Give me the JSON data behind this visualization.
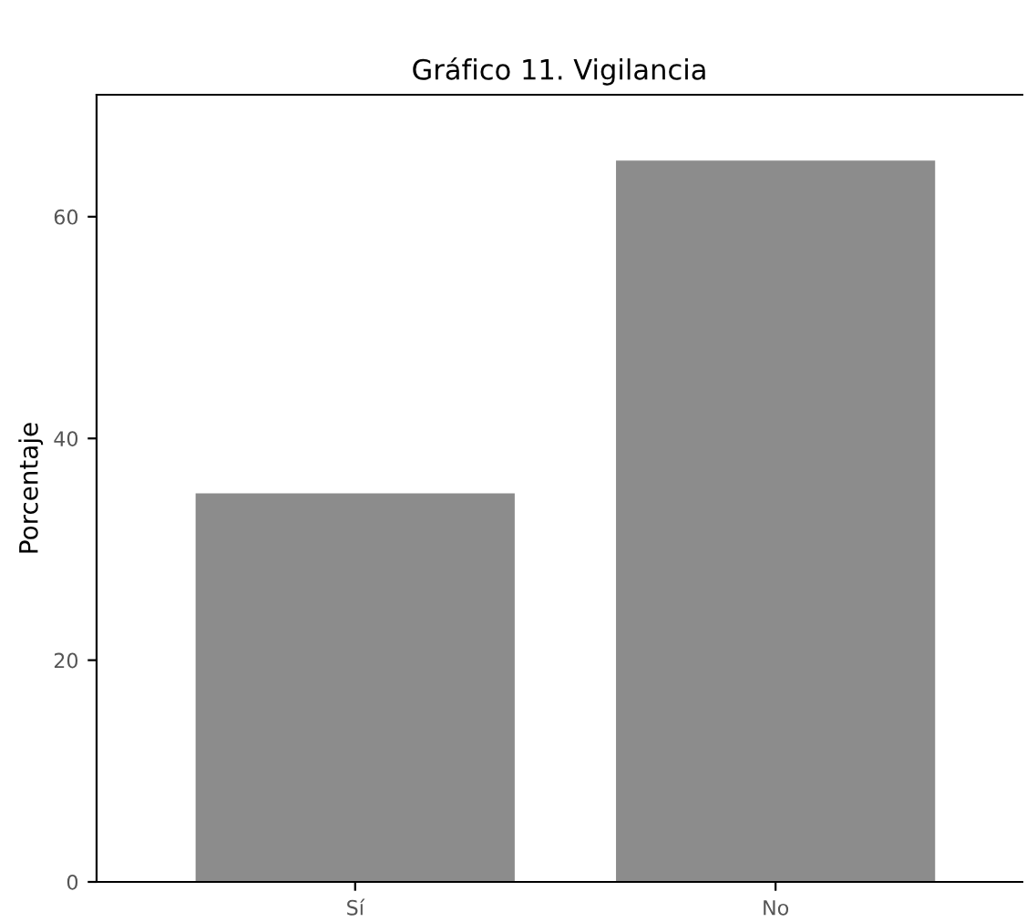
{
  "chart_data": {
    "type": "bar",
    "title": "Gráfico 11. Vigilancia",
    "ylabel": "Porcentaje",
    "categories": [
      "Sí",
      "No"
    ],
    "values": [
      35,
      65
    ],
    "color": "#8c8c8c",
    "ylim": [
      0,
      71
    ],
    "yticks": [
      0,
      20,
      40,
      60
    ],
    "grid": false,
    "legend": false
  }
}
